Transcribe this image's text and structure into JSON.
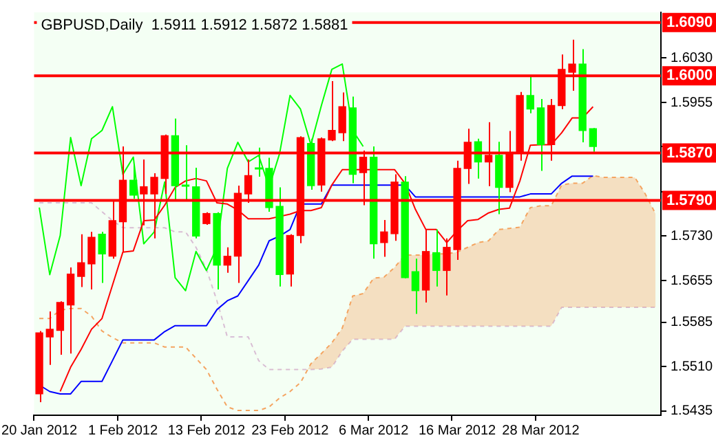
{
  "chart_data": {
    "type": "candlestick",
    "title": "GBPUSD,Daily  1.5911 1.5912 1.5872 1.5881",
    "categories": [
      "20 Jan 2012",
      null,
      null,
      null,
      null,
      null,
      null,
      null,
      "1 Feb 2012",
      null,
      null,
      null,
      null,
      null,
      null,
      null,
      "13 Feb 2012",
      null,
      null,
      null,
      null,
      null,
      null,
      null,
      "23 Feb 2012",
      null,
      null,
      null,
      null,
      null,
      null,
      null,
      "6 Mar 2012",
      null,
      null,
      null,
      null,
      null,
      null,
      null,
      "16 Mar 2012",
      null,
      null,
      null,
      null,
      null,
      null,
      null,
      "28 Mar 2012",
      null,
      null,
      null,
      null,
      null,
      null,
      null,
      null,
      null,
      null,
      null
    ],
    "ohlc": [
      [
        1.5464,
        1.557,
        1.545,
        1.5567
      ],
      [
        1.556,
        1.5603,
        1.5513,
        1.5573
      ],
      [
        1.5571,
        1.562,
        1.553,
        1.5618
      ],
      [
        1.5614,
        1.5677,
        1.5532,
        1.5666
      ],
      [
        1.5662,
        1.5733,
        1.5644,
        1.5685
      ],
      [
        1.5683,
        1.5737,
        1.564,
        1.5728
      ],
      [
        1.5733,
        1.5737,
        1.5651,
        1.57
      ],
      [
        1.5696,
        1.5789,
        1.5692,
        1.5756
      ],
      [
        1.5754,
        1.5881,
        1.5703,
        1.5824
      ],
      [
        1.5824,
        1.5851,
        1.5793,
        1.5799
      ],
      [
        1.5801,
        1.5859,
        1.5748,
        1.5813
      ],
      [
        1.5801,
        1.5836,
        1.5726,
        1.5829
      ],
      [
        1.5827,
        1.5901,
        1.5801,
        1.5899
      ],
      [
        1.5899,
        1.5928,
        1.5789,
        1.5815
      ],
      [
        1.5816,
        1.5883,
        1.5789,
        1.5814
      ],
      [
        1.5813,
        1.5845,
        1.5726,
        1.573
      ],
      [
        1.5751,
        1.577,
        1.5749,
        1.5768
      ],
      [
        1.5768,
        1.577,
        1.564,
        1.5681
      ],
      [
        1.5681,
        1.5711,
        1.5668,
        1.5696
      ],
      [
        1.5696,
        1.5815,
        1.5651,
        1.5802
      ],
      [
        1.5801,
        1.5859,
        1.5786,
        1.5832
      ],
      [
        1.5845,
        1.5879,
        1.583,
        1.5843
      ],
      [
        1.5844,
        1.5862,
        1.5771,
        1.5778
      ],
      [
        1.578,
        1.5812,
        1.5645,
        1.5665
      ],
      [
        1.5666,
        1.5733,
        1.5645,
        1.5731
      ],
      [
        1.5731,
        1.5898,
        1.5718,
        1.5896
      ],
      [
        1.5886,
        1.5894,
        1.5808,
        1.5815
      ],
      [
        1.5816,
        1.5896,
        1.5805,
        1.5894
      ],
      [
        1.5892,
        1.5991,
        1.589,
        1.5908
      ],
      [
        1.5904,
        1.5972,
        1.589,
        1.5948
      ],
      [
        1.5946,
        1.5965,
        1.5819,
        1.5834
      ],
      [
        1.5837,
        1.5874,
        1.5782,
        1.5863
      ],
      [
        1.5863,
        1.5881,
        1.5692,
        1.5717
      ],
      [
        1.5719,
        1.5757,
        1.5695,
        1.5737
      ],
      [
        1.5734,
        1.5834,
        1.5722,
        1.5821
      ],
      [
        1.5821,
        1.5831,
        1.5659,
        1.566
      ],
      [
        1.567,
        1.5692,
        1.5599,
        1.5638
      ],
      [
        1.5639,
        1.5741,
        1.5618,
        1.5704
      ],
      [
        1.5702,
        1.5741,
        1.5645,
        1.5672
      ],
      [
        1.5672,
        1.5726,
        1.563,
        1.5711
      ],
      [
        1.5707,
        1.5857,
        1.569,
        1.5844
      ],
      [
        1.5844,
        1.5911,
        1.5818,
        1.5888
      ],
      [
        1.5889,
        1.5894,
        1.5827,
        1.5855
      ],
      [
        1.5855,
        1.5922,
        1.5814,
        1.5866
      ],
      [
        1.5866,
        1.5889,
        1.5767,
        1.5812
      ],
      [
        1.5812,
        1.5907,
        1.5804,
        1.5869
      ],
      [
        1.5869,
        1.5973,
        1.5857,
        1.5967
      ],
      [
        1.5967,
        1.5999,
        1.5937,
        1.5944
      ],
      [
        1.5946,
        1.5961,
        1.584,
        1.5884
      ],
      [
        1.5884,
        1.5961,
        1.5857,
        1.595
      ],
      [
        1.595,
        1.6036,
        1.5944,
        1.6011
      ],
      [
        1.6006,
        1.6061,
        1.5975,
        1.602
      ],
      [
        1.602,
        1.6045,
        1.5888,
        1.5908
      ],
      [
        1.5911,
        1.5912,
        1.5872,
        1.5881
      ],
      null,
      null,
      null,
      null,
      null,
      null
    ],
    "colors": [
      "#ff0000",
      "#ff0000",
      "#ff0000",
      "#ff0000",
      "#ff0000",
      "#ff0000",
      "#00ff00",
      "#ff0000",
      "#ff0000",
      "#00ff00",
      "#ff0000",
      "#ff0000",
      "#ff0000",
      "#00ff00",
      "#00ff00",
      "#00ff00",
      "#ff0000",
      "#00ff00",
      "#ff0000",
      "#ff0000",
      "#ff0000",
      "#00ff00",
      "#00ff00",
      "#00ff00",
      "#ff0000",
      "#ff0000",
      "#00ff00",
      "#ff0000",
      "#ff0000",
      "#ff0000",
      "#00ff00",
      "#ff0000",
      "#00ff00",
      "#ff0000",
      "#ff0000",
      "#00ff00",
      "#00ff00",
      "#ff0000",
      "#00ff00",
      "#ff0000",
      "#ff0000",
      "#ff0000",
      "#00ff00",
      "#ff0000",
      "#00ff00",
      "#ff0000",
      "#ff0000",
      "#00ff00",
      "#00ff00",
      "#ff0000",
      "#ff0000",
      "#ff0000",
      "#00ff00",
      "#00ff00",
      null,
      null,
      null,
      null,
      null,
      null
    ],
    "series": [
      {
        "type": "line",
        "color": "#ff0000",
        "values": [
          null,
          null,
          1.5468,
          1.5509,
          1.5539,
          1.5573,
          1.5591,
          1.5647,
          1.5703,
          1.5705,
          1.5756,
          1.5757,
          1.5782,
          1.5812,
          1.5823,
          1.5827,
          1.5823,
          1.5786,
          1.5784,
          1.5774,
          1.5759,
          1.5759,
          1.5759,
          1.5763,
          1.5767,
          1.5773,
          1.5773,
          1.5778,
          1.5816,
          1.5842,
          1.5842,
          1.5842,
          1.5842,
          1.5842,
          1.5842,
          1.5819,
          1.5775,
          1.5741,
          1.5741,
          1.5719,
          1.5739,
          1.5756,
          1.5758,
          1.5769,
          1.5775,
          1.5777,
          1.5823,
          1.5883,
          1.5884,
          1.5884,
          1.5904,
          1.5929,
          1.5929,
          1.5948,
          null,
          null,
          null,
          null,
          null,
          null
        ]
      },
      {
        "type": "line",
        "color": "#0000ff",
        "values": [
          1.5479,
          1.5468,
          1.5464,
          1.5464,
          1.5485,
          1.5485,
          1.5485,
          1.552,
          1.5555,
          1.5555,
          1.5555,
          1.5555,
          1.5569,
          1.5579,
          1.5579,
          1.5579,
          1.5579,
          1.5606,
          1.5621,
          1.5629,
          1.5655,
          1.5681,
          1.5722,
          1.573,
          1.5741,
          1.5784,
          1.5784,
          1.5784,
          1.5816,
          1.5816,
          1.5816,
          1.5816,
          1.5816,
          1.5816,
          1.5816,
          1.5816,
          1.5796,
          1.5796,
          1.5796,
          1.5796,
          1.5796,
          1.5796,
          1.5796,
          1.5796,
          1.5796,
          1.5796,
          1.5796,
          1.5801,
          1.5801,
          1.5801,
          1.5819,
          1.5831,
          1.5831,
          1.5831,
          null,
          null,
          null,
          null,
          null,
          null
        ]
      },
      {
        "type": "line",
        "color": "#00ff00",
        "values": [
          1.5778,
          1.5665,
          1.5731,
          1.5896,
          1.5815,
          1.5894,
          1.5908,
          1.5948,
          1.5834,
          1.5863,
          1.5717,
          1.5737,
          1.5821,
          1.566,
          1.5638,
          1.5704,
          1.5672,
          1.5711,
          1.5844,
          1.5888,
          1.5855,
          1.5866,
          1.5812,
          1.5869,
          1.5967,
          1.5944,
          1.5884,
          1.595,
          1.6011,
          1.602,
          1.5908,
          1.5881,
          null,
          null,
          null,
          null,
          null,
          null,
          null,
          null,
          null,
          null,
          null,
          null,
          null,
          null,
          null,
          null,
          null,
          null,
          null,
          null,
          null,
          null,
          null,
          null,
          null,
          null,
          null,
          null
        ]
      },
      {
        "type": "line",
        "color": "#f4a460",
        "line_style": "dashed",
        "values": [
          1.5591,
          1.5591,
          1.5605,
          1.5608,
          1.5608,
          1.5595,
          1.557,
          1.5559,
          1.555,
          1.555,
          1.555,
          1.555,
          1.5543,
          1.5543,
          1.5543,
          1.5524,
          1.5505,
          1.5472,
          1.5442,
          1.5436,
          1.5436,
          1.5436,
          1.5442,
          1.5457,
          1.5468,
          1.5483,
          1.5515,
          1.5532,
          1.555,
          1.5575,
          1.5629,
          1.5633,
          1.5659,
          1.5661,
          1.5677,
          1.5698,
          1.5698,
          1.5698,
          1.57,
          1.57,
          1.5703,
          1.5711,
          1.5719,
          1.5722,
          1.5741,
          1.5743,
          1.5745,
          1.5778,
          1.5781,
          1.5781,
          1.5816,
          1.5819,
          1.5819,
          1.5832,
          1.5829,
          1.5829,
          1.5829,
          1.5829,
          1.5801,
          1.5767
        ]
      },
      {
        "type": "line",
        "color": "#d8bfd8",
        "line_style": "dashed",
        "values": [
          1.5786,
          1.5786,
          1.5786,
          1.5786,
          1.5786,
          1.5786,
          1.5771,
          1.5756,
          1.5744,
          1.5744,
          1.5744,
          1.5744,
          1.5744,
          1.5737,
          1.5737,
          1.5711,
          1.5674,
          1.5621,
          1.556,
          1.556,
          1.556,
          1.552,
          1.5505,
          1.5505,
          1.5505,
          1.5505,
          1.5505,
          1.5506,
          1.5509,
          1.5536,
          1.5556,
          1.5556,
          1.5556,
          1.5556,
          1.5556,
          1.5578,
          1.5578,
          1.5578,
          1.5578,
          1.5578,
          1.5578,
          1.5578,
          1.5578,
          1.5578,
          1.5578,
          1.5578,
          1.5578,
          1.5578,
          1.5578,
          1.5578,
          1.561,
          1.561,
          1.561,
          1.561,
          1.561,
          1.561,
          1.561,
          1.561,
          1.561,
          1.561
        ]
      }
    ],
    "ylim": [
      1.5428,
      1.6107
    ],
    "yticks": [
      {
        "value": 1.603,
        "label": "1.6030"
      },
      {
        "value": 1.5955,
        "label": "1.5955"
      },
      {
        "value": 1.5881,
        "label": null
      },
      {
        "value": 1.5805,
        "label": null
      },
      {
        "value": 1.573,
        "label": "1.5730"
      },
      {
        "value": 1.5655,
        "label": "1.5655"
      },
      {
        "value": 1.5585,
        "label": "1.5585"
      },
      {
        "value": 1.551,
        "label": "1.5510"
      },
      {
        "value": 1.5435,
        "label": "1.5435"
      }
    ],
    "ref_lines": [
      {
        "axis": "y",
        "value": 1.609,
        "label": "1.6090",
        "color": "#ff0000"
      },
      {
        "axis": "y",
        "value": 1.6,
        "label": "1.6000",
        "color": "#ff0000"
      },
      {
        "axis": "y",
        "value": 1.587,
        "label": "1.5870",
        "color": "#ff0000"
      },
      {
        "axis": "y",
        "value": 1.579,
        "label": "1.5790",
        "color": "#ff0000"
      }
    ],
    "grid": false,
    "legend": false
  }
}
